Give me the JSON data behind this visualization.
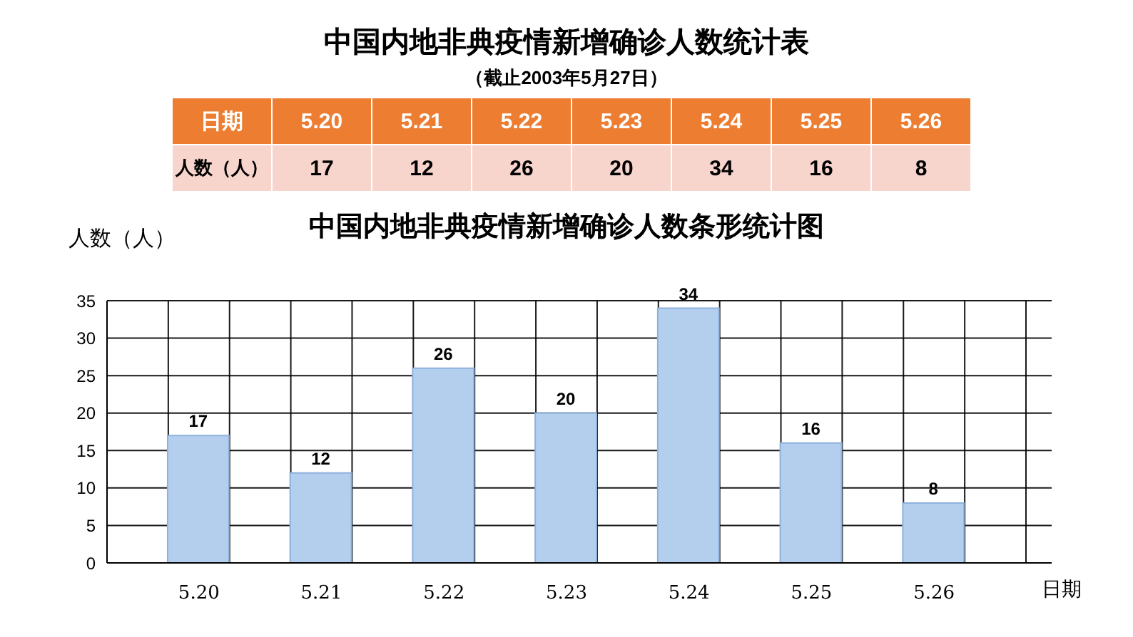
{
  "chart_data": {
    "type": "bar",
    "title": "中国内地非典疫情新增确诊人数统计表",
    "subtitle": "（截止2003年5月27日）",
    "annotations": [
      "中国内地非典疫情新增确诊人数条形统计图",
      "17",
      "12",
      "26",
      "20",
      "34",
      "16",
      "8"
    ],
    "xlabel": "日期",
    "ylabel": "人数（人）",
    "categories": [
      "5.20",
      "5.21",
      "5.22",
      "5.23",
      "5.24",
      "5.25",
      "5.26"
    ],
    "values": [
      17,
      12,
      26,
      20,
      34,
      16,
      8
    ],
    "color": "#b4cfee",
    "ylim": [
      0,
      35
    ],
    "yticks": [
      0,
      5,
      10,
      15,
      20,
      25,
      30,
      35
    ],
    "grid": true,
    "data_labels": true
  }
}
